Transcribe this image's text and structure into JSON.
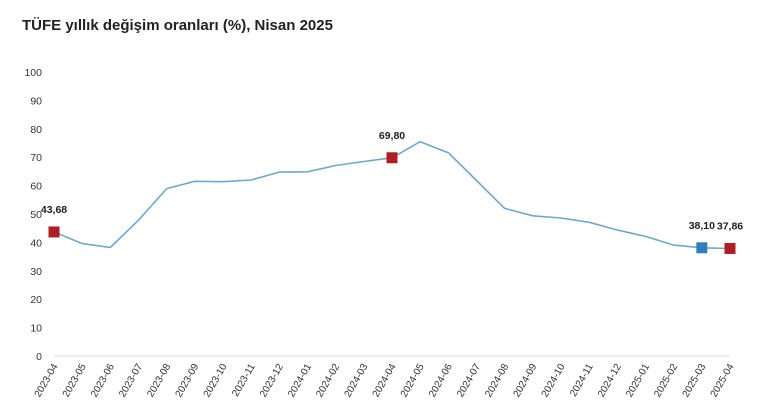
{
  "title": "TÜFE yıllık değişim oranları (%), Nisan 2025",
  "chart_data": {
    "type": "line",
    "title": "TÜFE yıllık değişim oranları (%), Nisan 2025",
    "xlabel": "",
    "ylabel": "",
    "ylim": [
      0,
      100
    ],
    "yticks": [
      "0",
      "10",
      "20",
      "30",
      "40",
      "50",
      "60",
      "70",
      "80",
      "90",
      "100"
    ],
    "grid": false,
    "categories": [
      "2023-04",
      "2023-05",
      "2023-06",
      "2023-07",
      "2023-08",
      "2023-09",
      "2023-10",
      "2023-11",
      "2023-12",
      "2024-01",
      "2024-02",
      "2024-03",
      "2024-04",
      "2024-05",
      "2024-06",
      "2024-07",
      "2024-08",
      "2024-09",
      "2024-10",
      "2024-11",
      "2024-12",
      "2025-01",
      "2025-02",
      "2025-03",
      "2025-04"
    ],
    "series": [
      {
        "values": [
          43.68,
          39.59,
          38.21,
          47.83,
          58.94,
          61.53,
          61.36,
          61.98,
          64.77,
          64.86,
          67.07,
          68.5,
          69.8,
          75.45,
          71.6,
          61.78,
          51.97,
          49.38,
          48.58,
          47.09,
          44.38,
          42.12,
          39.05,
          38.1,
          37.86
        ],
        "color": "#6fa8c8"
      }
    ],
    "highlighted_points": [
      {
        "category": "2023-04",
        "value": 43.68,
        "label": "43,68",
        "color": "#b01e23"
      },
      {
        "category": "2024-04",
        "value": 69.8,
        "label": "69,80",
        "color": "#b01e23"
      },
      {
        "category": "2025-03",
        "value": 38.1,
        "label": "38,10",
        "color": "#2f7fbf"
      },
      {
        "category": "2025-04",
        "value": 37.86,
        "label": "37,86",
        "color": "#b01e23"
      }
    ]
  }
}
